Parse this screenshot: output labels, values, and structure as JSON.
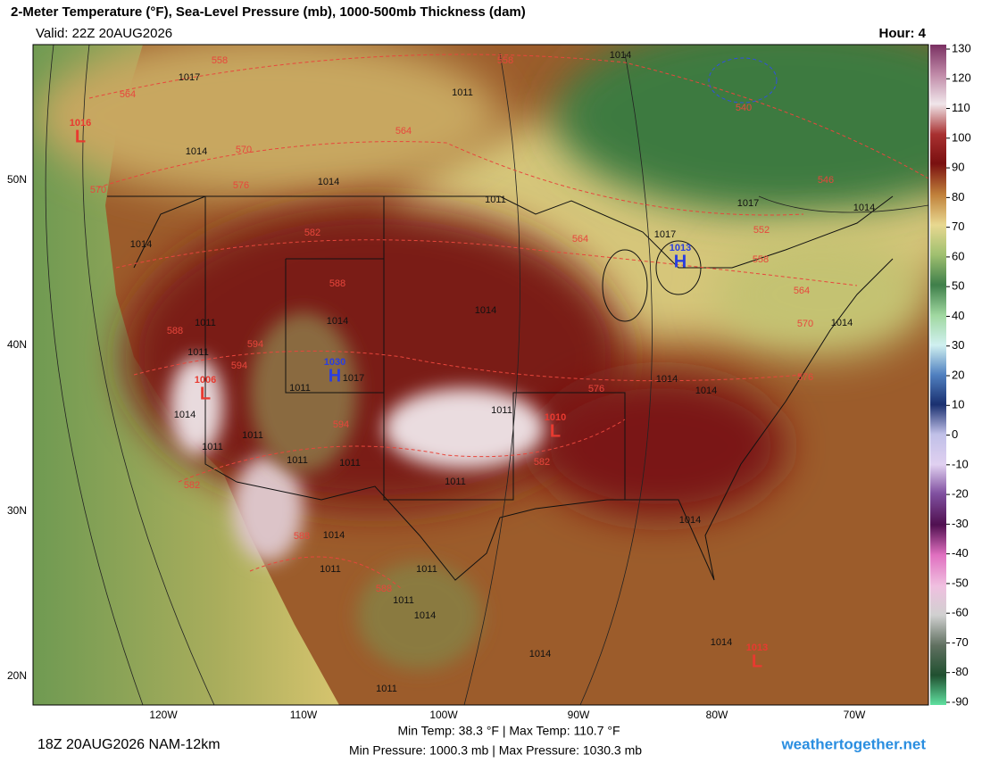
{
  "header": {
    "title": "2-Meter Temperature (°F), Sea-Level Pressure (mb), 1000-500mb Thickness (dam)",
    "valid": "Valid: 22Z 20AUG2026",
    "hour": "Hour: 4"
  },
  "map": {
    "lat_labels": [
      "50N",
      "40N",
      "30N",
      "20N"
    ],
    "lon_labels": [
      "120W",
      "110W",
      "100W",
      "90W",
      "80W",
      "70W"
    ],
    "isobar_labels": [
      "1014",
      "1017",
      "1011",
      "1014",
      "1014",
      "1011",
      "1017",
      "1014",
      "1017",
      "1014",
      "1014",
      "1014",
      "1011",
      "1011",
      "1014",
      "1014",
      "1014",
      "1011",
      "1014",
      "1011",
      "1011",
      "1011",
      "1011",
      "1011",
      "1014",
      "1011",
      "1011",
      "1011",
      "1014",
      "1014",
      "1014",
      "1014",
      "1011",
      "1017",
      "1011"
    ],
    "thickness_labels": [
      "558",
      "558",
      "564",
      "564",
      "570",
      "576",
      "582",
      "564",
      "552",
      "558",
      "564",
      "570",
      "588",
      "588",
      "594",
      "594",
      "576",
      "576",
      "594",
      "582",
      "582",
      "588",
      "588",
      "540",
      "546",
      "570"
    ],
    "pressure_centers": [
      {
        "letter": "H",
        "value": "1030"
      },
      {
        "letter": "H",
        "value": "1013"
      },
      {
        "letter": "L",
        "value": "1016"
      },
      {
        "letter": "L",
        "value": "1006"
      },
      {
        "letter": "L",
        "value": "1010"
      },
      {
        "letter": "L",
        "value": "1013"
      }
    ]
  },
  "colorbar": {
    "range": [
      -90,
      130
    ],
    "ticks": [
      130,
      120,
      110,
      100,
      90,
      80,
      70,
      60,
      50,
      40,
      30,
      20,
      10,
      0,
      -10,
      -20,
      -30,
      -40,
      -50,
      -60,
      -70,
      -80,
      -90
    ]
  },
  "footer": {
    "run": "18Z 20AUG2026 NAM-12km",
    "temp": "Min Temp:  38.3 °F | Max Temp: 110.7 °F",
    "pressure": "Min Pressure: 1000.3 mb | Max Pressure: 1030.3 mb",
    "site": "weathertogether.net"
  }
}
